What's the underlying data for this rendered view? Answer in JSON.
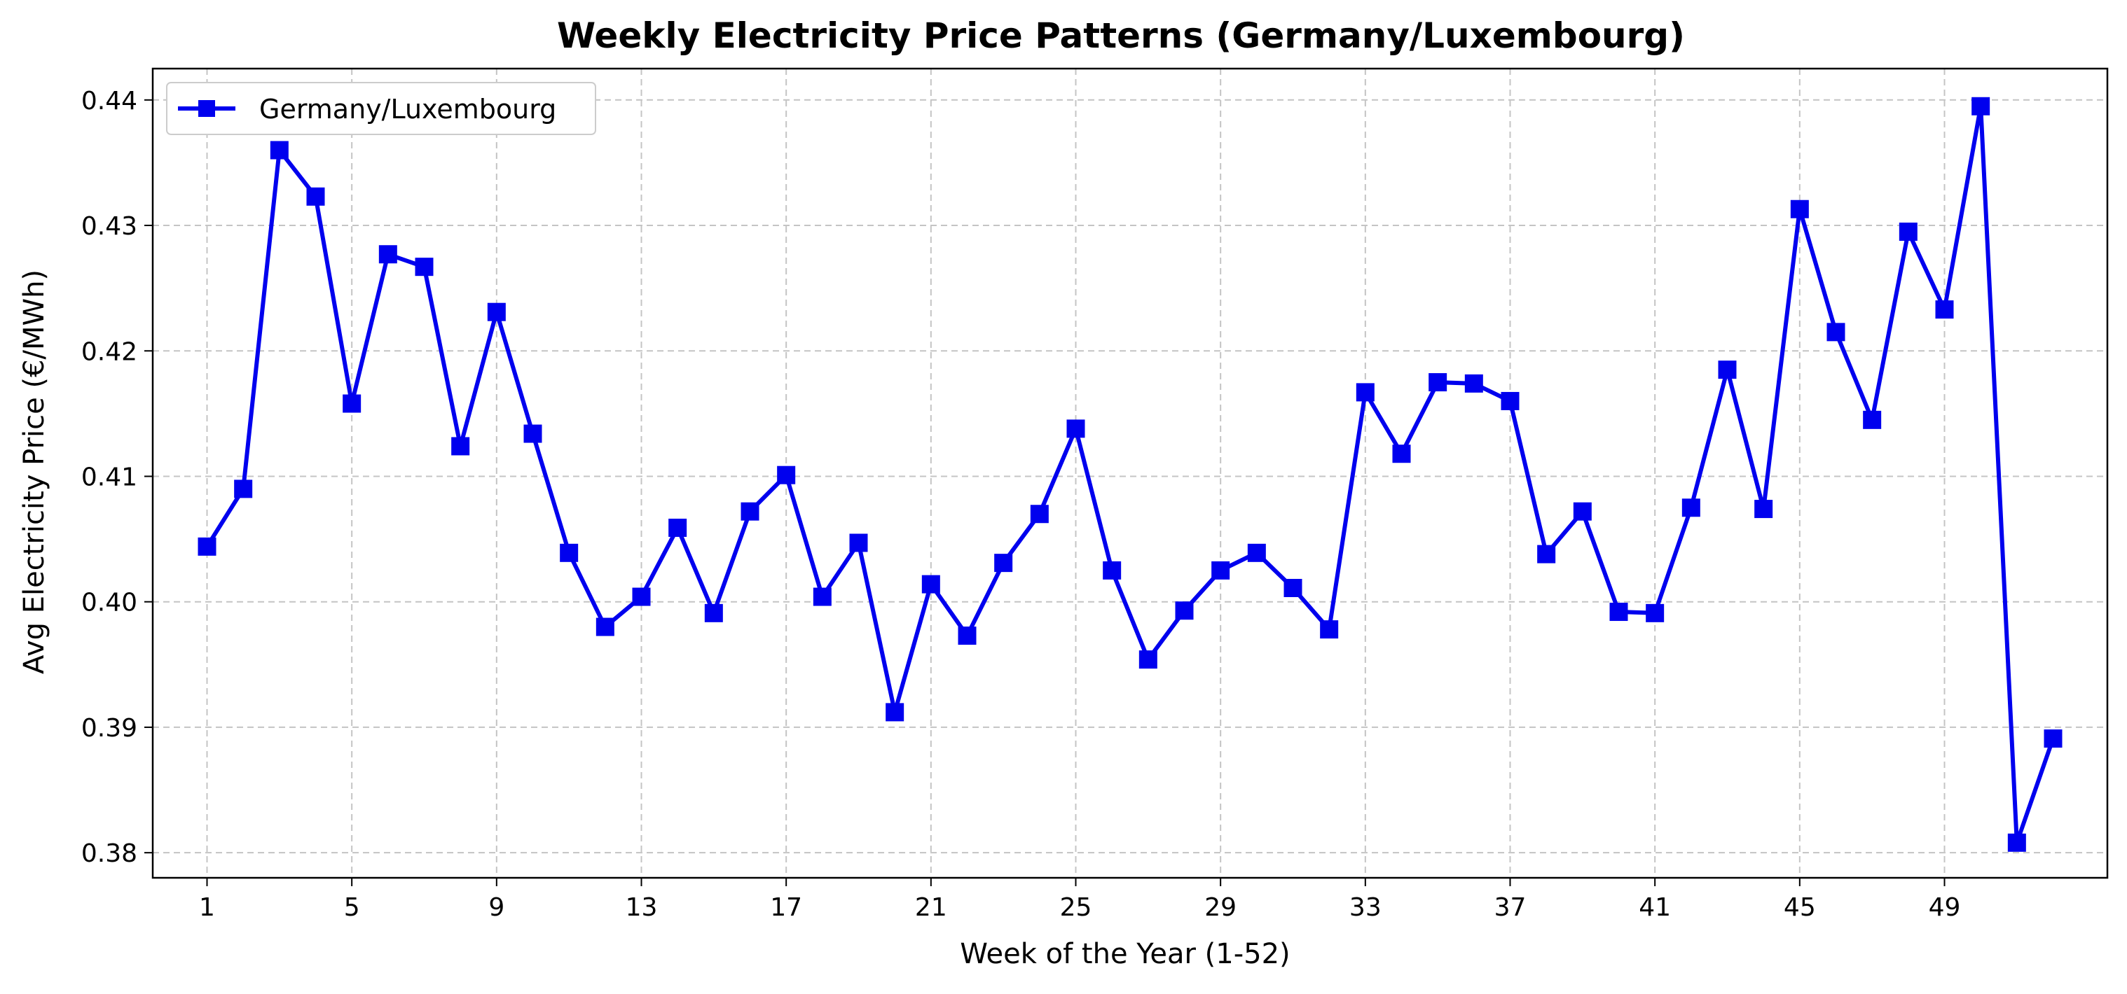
{
  "chart_data": {
    "type": "line",
    "title": "Weekly Electricity Price Patterns (Germany/Luxembourg)",
    "xlabel": "Week of the Year (1-52)",
    "ylabel": "Avg Electricity Price (€/MWh)",
    "xlim": [
      -0.5,
      53.5
    ],
    "ylim": [
      0.378,
      0.4425
    ],
    "x_ticks": [
      1,
      5,
      9,
      13,
      17,
      21,
      25,
      29,
      33,
      37,
      41,
      45,
      49
    ],
    "y_ticks": [
      0.38,
      0.39,
      0.4,
      0.41,
      0.42,
      0.43,
      0.44
    ],
    "y_tick_labels": [
      "0.38",
      "0.39",
      "0.40",
      "0.41",
      "0.42",
      "0.43",
      "0.44"
    ],
    "grid": true,
    "legend_position": "top-left",
    "colors": {
      "series": "#0000ee",
      "grid": "#c4c4c4",
      "axis": "#000000"
    },
    "series": [
      {
        "name": "Germany/Luxembourg",
        "marker": "square",
        "x": [
          1,
          2,
          3,
          4,
          5,
          6,
          7,
          8,
          9,
          10,
          11,
          12,
          13,
          14,
          15,
          16,
          17,
          18,
          19,
          20,
          21,
          22,
          23,
          24,
          25,
          26,
          27,
          28,
          29,
          30,
          31,
          32,
          33,
          34,
          35,
          36,
          37,
          38,
          39,
          40,
          41,
          42,
          43,
          44,
          45,
          46,
          47,
          48,
          49,
          50,
          51,
          52
        ],
        "values": [
          0.4044,
          0.409,
          0.436,
          0.4323,
          0.4158,
          0.4277,
          0.4267,
          0.4124,
          0.4231,
          0.4134,
          0.4039,
          0.398,
          0.4004,
          0.4059,
          0.3991,
          0.4072,
          0.4101,
          0.4004,
          0.4047,
          0.3912,
          0.4014,
          0.3973,
          0.4031,
          0.407,
          0.4138,
          0.4025,
          0.3954,
          0.3993,
          0.4025,
          0.4039,
          0.4011,
          0.3978,
          0.4167,
          0.4118,
          0.4175,
          0.4174,
          0.416,
          0.4038,
          0.4072,
          0.3992,
          0.3991,
          0.4075,
          0.4185,
          0.4074,
          0.4313,
          0.4215,
          0.4145,
          0.4295,
          0.4233,
          0.4395,
          0.3808,
          0.3891
        ]
      }
    ]
  }
}
